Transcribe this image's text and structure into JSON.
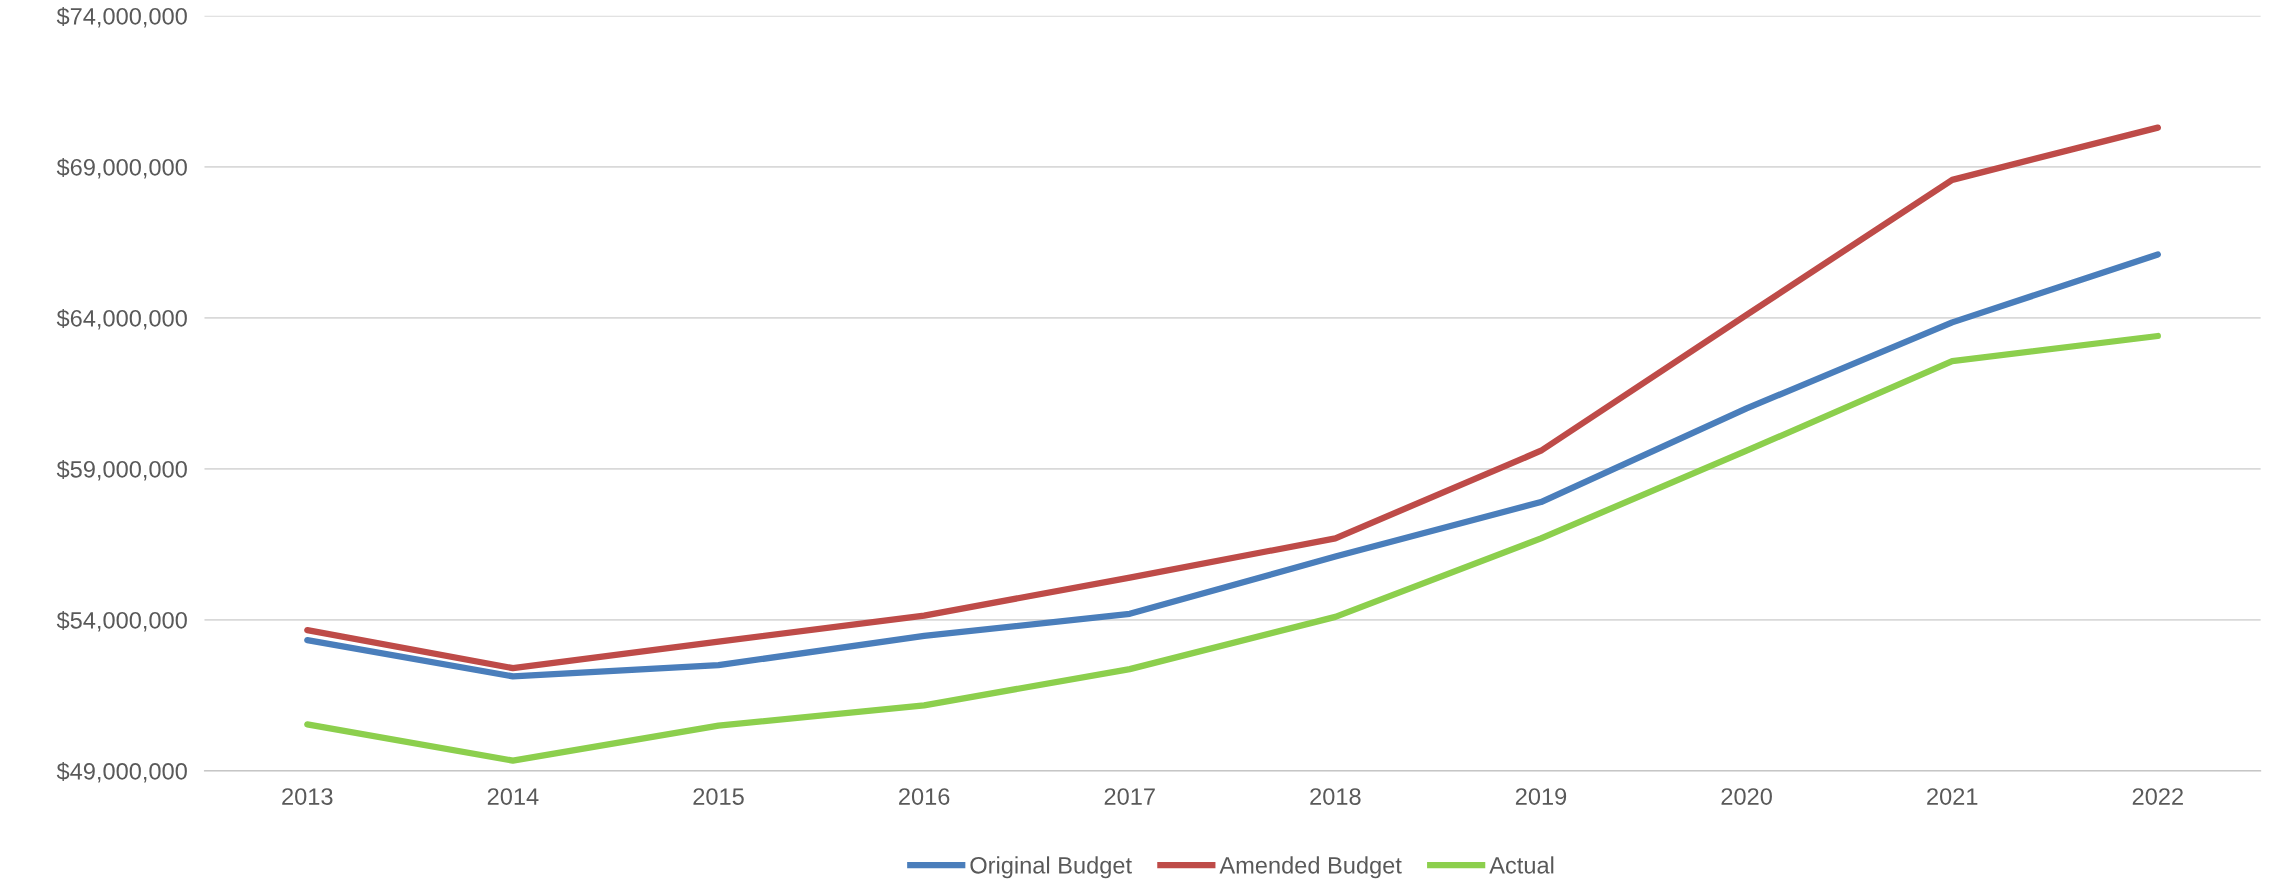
{
  "chart_data": {
    "type": "line",
    "categories": [
      "2013",
      "2014",
      "2015",
      "2016",
      "2017",
      "2018",
      "2019",
      "2020",
      "2021",
      "2022"
    ],
    "series": [
      {
        "name": "Original Budget",
        "color": "#4a7ebb",
        "values": [
          53330000,
          52130000,
          52500000,
          53470000,
          54200000,
          56100000,
          57900000,
          61000000,
          63850000,
          66100000
        ]
      },
      {
        "name": "Amended Budget",
        "color": "#be4b48",
        "values": [
          53660000,
          52400000,
          53280000,
          54140000,
          55400000,
          56700000,
          59600000,
          64100000,
          68570000,
          70300000
        ]
      },
      {
        "name": "Actual",
        "color": "#8ccf4d",
        "values": [
          50540000,
          49340000,
          50500000,
          51170000,
          52370000,
          54100000,
          56700000,
          59600000,
          62570000,
          63400000
        ]
      }
    ],
    "ylim": [
      49000000,
      74000000
    ],
    "yticks": [
      {
        "value": 49000000,
        "label": "$49,000,000"
      },
      {
        "value": 54000000,
        "label": "$54,000,000"
      },
      {
        "value": 59000000,
        "label": "$59,000,000"
      },
      {
        "value": 64000000,
        "label": "$64,000,000"
      },
      {
        "value": 69000000,
        "label": "$69,000,000"
      },
      {
        "value": 74000000,
        "label": "$74,000,000"
      }
    ],
    "grid": "y",
    "legend": "bottom",
    "marker": "none",
    "line_style": "solid"
  }
}
